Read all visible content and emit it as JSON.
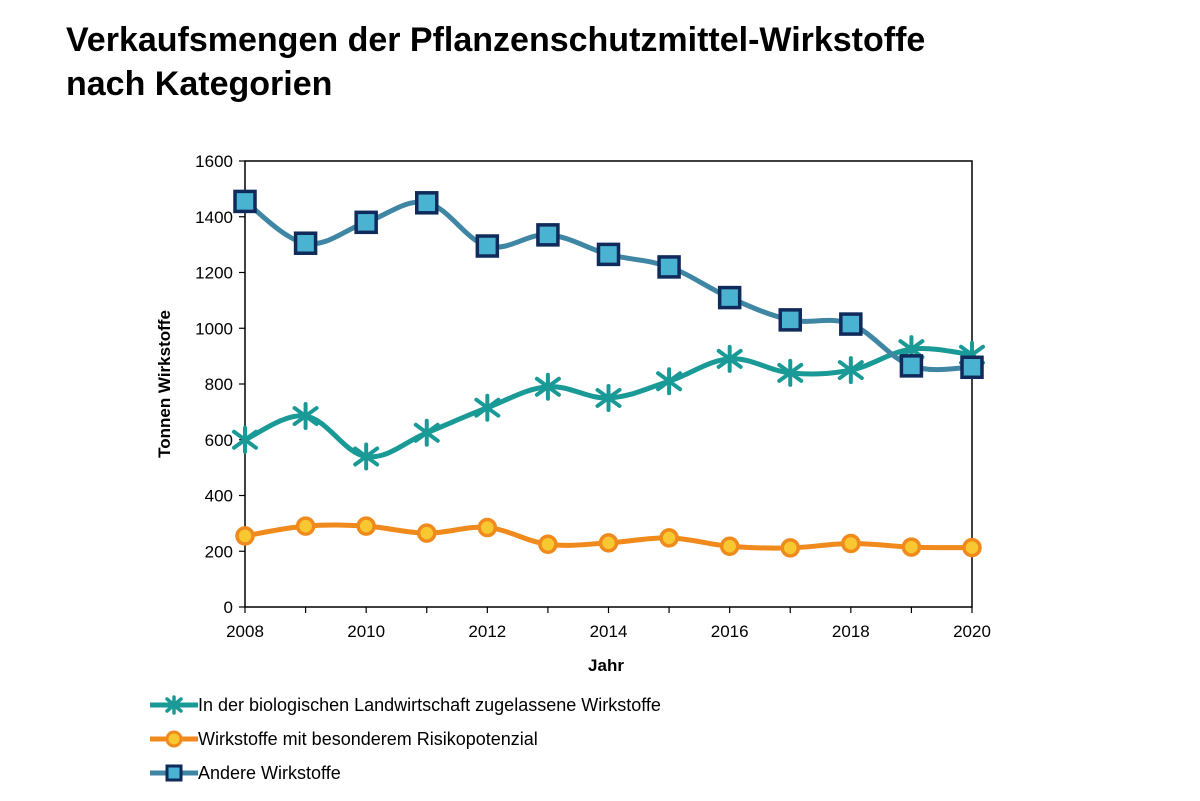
{
  "title_line1": "Verkaufsmengen der Pflanzenschutzmittel-Wirkstoffe",
  "title_line2": "nach Kategorien",
  "chart_data": {
    "type": "line",
    "xlabel": "Jahr",
    "ylabel": "Tonnen Wirkstoffe",
    "xlim": [
      2008,
      2020
    ],
    "ylim": [
      0,
      1600
    ],
    "xticks": [
      2008,
      2010,
      2012,
      2014,
      2016,
      2018,
      2020
    ],
    "yticks": [
      0,
      200,
      400,
      600,
      800,
      1000,
      1200,
      1400,
      1600
    ],
    "x": [
      2008,
      2009,
      2010,
      2011,
      2012,
      2013,
      2014,
      2015,
      2016,
      2017,
      2018,
      2019,
      2020
    ],
    "grid": false,
    "legend_position": "bottom",
    "series": [
      {
        "name": "In der biologischen Landwirtschaft zugelassene Wirkstoffe",
        "color": "#1a9a96",
        "marker": "asterisk",
        "values": [
          600,
          685,
          540,
          625,
          715,
          790,
          750,
          810,
          890,
          840,
          850,
          925,
          905
        ]
      },
      {
        "name": "Wirkstoffe mit besonderem Risikopotenzial",
        "color": "#f08a1c",
        "marker": "circle",
        "values": [
          255,
          290,
          290,
          265,
          285,
          225,
          230,
          248,
          218,
          212,
          228,
          215,
          213
        ]
      },
      {
        "name": "Andere Wirkstoffe",
        "color": "#3f86a4",
        "marker": "square",
        "values": [
          1455,
          1305,
          1380,
          1450,
          1295,
          1335,
          1265,
          1220,
          1110,
          1030,
          1015,
          865,
          860
        ]
      }
    ]
  }
}
